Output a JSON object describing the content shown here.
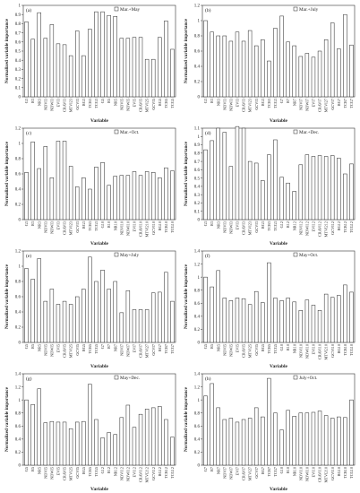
{
  "figure": {
    "ylabel": "Normalized variable importance",
    "xlabel": "Variable"
  },
  "chart_data": [
    {
      "type": "bar",
      "panel_label": "(a)",
      "legend": "Mar.+May",
      "categories": [
        "G3",
        "R3",
        "NR3",
        "NDVI3",
        "NDWI3",
        "EVI3",
        "CRAVI3",
        "MTVI23",
        "GCVI3",
        "RG3",
        "TCB3",
        "TCG3",
        "G5",
        "R5",
        "NR5",
        "NDVI5",
        "NDWI5",
        "EVI5",
        "CRAVI5",
        "MTVI25",
        "GCVI5",
        "RG5",
        "TCB5",
        "TCG5"
      ],
      "values": [
        0.82,
        0.63,
        0.92,
        0.64,
        0.79,
        0.58,
        0.57,
        0.45,
        0.72,
        0.45,
        0.74,
        0.93,
        0.93,
        0.89,
        0.88,
        0.64,
        0.64,
        0.65,
        0.65,
        0.41,
        0.41,
        0.65,
        0.83,
        0.52
      ],
      "yticks": [
        0,
        0.1,
        0.2,
        0.3,
        0.4,
        0.5,
        0.6,
        0.7,
        0.8,
        0.9,
        1
      ],
      "ylim": [
        0,
        1.0
      ]
    },
    {
      "type": "bar",
      "panel_label": "(b)",
      "legend": "Mar.+July",
      "categories": [
        "G3",
        "R3",
        "NR3",
        "NDVI3",
        "NDWI3",
        "EVI3",
        "CRAVI3",
        "MTVI23",
        "GCVI3",
        "RG3",
        "TCB3",
        "TCG3",
        "G7",
        "R7",
        "NR7",
        "NDVI7",
        "NDWI7",
        "EVI7",
        "CRAVI7",
        "MTVI27",
        "GCVI7",
        "RG7",
        "TCB7",
        "TCG7"
      ],
      "values": [
        1.0,
        0.85,
        0.8,
        0.8,
        0.73,
        0.85,
        0.73,
        0.87,
        0.67,
        0.75,
        0.47,
        0.9,
        1.06,
        0.72,
        0.67,
        0.53,
        0.57,
        0.52,
        0.6,
        0.75,
        0.97,
        0.63,
        1.08,
        0.68
      ],
      "yticks": [
        0,
        0.2,
        0.4,
        0.6,
        0.8,
        1,
        1.2
      ],
      "ylim": [
        0,
        1.2
      ]
    },
    {
      "type": "bar",
      "panel_label": "(c)",
      "legend": "Mar.+Oct.",
      "categories": [
        "G3",
        "R3",
        "NR3",
        "NDVI3",
        "NDWI3",
        "EVI3",
        "CRAVI3",
        "MTVI23",
        "GCVI3",
        "RG3",
        "TCB3",
        "TCG3",
        "G10",
        "R10",
        "NR10",
        "NDVI10",
        "NDWI10",
        "EVI10",
        "CRAVI10",
        "MTVI210",
        "GCVI10",
        "RG10",
        "TCB10",
        "TCG10"
      ],
      "values": [
        0.62,
        1.02,
        0.67,
        0.96,
        0.55,
        1.03,
        1.03,
        0.7,
        0.43,
        0.55,
        0.4,
        0.69,
        0.75,
        0.45,
        0.57,
        0.58,
        0.58,
        0.63,
        0.58,
        0.63,
        0.62,
        0.55,
        0.68,
        0.64
      ],
      "yticks": [
        0,
        0.2,
        0.4,
        0.6,
        0.8,
        1,
        1.2
      ],
      "ylim": [
        0,
        1.2
      ]
    },
    {
      "type": "bar",
      "panel_label": "(d)",
      "legend": "Mar.+Dec.",
      "categories": [
        "G3",
        "R3",
        "NR3",
        "NDVI3",
        "NDWI3",
        "EVI3",
        "CRAVI3",
        "MTVI23",
        "GCVI3",
        "RG3",
        "TCB3",
        "TCG3",
        "G12",
        "R12",
        "NR12",
        "NDVI12",
        "NDWI12",
        "EVI12",
        "CRAVI12",
        "MTVI212",
        "GCVI12",
        "RG12",
        "TCB12",
        "TCG12"
      ],
      "values": [
        0.84,
        0.95,
        1.1,
        1.05,
        0.64,
        1.12,
        1.1,
        0.7,
        0.68,
        0.47,
        0.78,
        0.96,
        0.51,
        0.44,
        0.34,
        0.66,
        0.78,
        0.76,
        0.77,
        0.76,
        0.77,
        0.74,
        0.55,
        0.67
      ],
      "yticks": [
        0,
        0.1,
        0.2,
        0.3,
        0.4,
        0.5,
        0.6,
        0.7,
        0.8,
        0.9,
        1,
        1.1
      ],
      "ylim": [
        0,
        1.1
      ]
    },
    {
      "type": "bar",
      "panel_label": "(e)",
      "legend": "May+July",
      "categories": [
        "G5",
        "R5",
        "NR5",
        "NDVI5",
        "NDWI5",
        "EVI5",
        "CRAVI5",
        "MTVI25",
        "GCVI5",
        "RG5",
        "TCB5",
        "TCG5",
        "G7",
        "R7",
        "NR7",
        "NDVI7",
        "NDWI7",
        "EVI7",
        "CRAVI7",
        "MTVI27",
        "GCVI7",
        "RG7",
        "TCB7",
        "TCG7"
      ],
      "values": [
        0.97,
        0.83,
        1.1,
        0.54,
        0.7,
        0.5,
        0.54,
        0.5,
        0.6,
        0.7,
        1.12,
        0.8,
        0.95,
        0.7,
        0.8,
        0.39,
        0.68,
        0.43,
        0.43,
        0.43,
        0.65,
        0.66,
        0.92,
        0.54
      ],
      "yticks": [
        0,
        0.2,
        0.4,
        0.6,
        0.8,
        1,
        1.2
      ],
      "ylim": [
        0,
        1.2
      ]
    },
    {
      "type": "bar",
      "panel_label": "(f)",
      "legend": "May+Oct.",
      "categories": [
        "G5",
        "R5",
        "NR5",
        "NDVI5",
        "NDWI5",
        "EVI5",
        "CRAVI5",
        "MTVI25",
        "GCVI5",
        "RG5",
        "TCB5",
        "TCG5",
        "G10",
        "R10",
        "NR10",
        "NDVI10",
        "NDWI10",
        "EVI10",
        "CRAVI10",
        "MTVI210",
        "GCVI10",
        "RG10",
        "TCB10",
        "TCG10"
      ],
      "values": [
        1.0,
        0.85,
        1.1,
        0.68,
        0.64,
        0.68,
        0.67,
        0.58,
        0.78,
        0.61,
        1.22,
        0.68,
        0.64,
        0.68,
        0.62,
        0.49,
        0.65,
        0.57,
        0.49,
        0.74,
        0.69,
        0.72,
        0.88,
        0.77
      ],
      "yticks": [
        0,
        0.2,
        0.4,
        0.6,
        0.8,
        1,
        1.2,
        1.4
      ],
      "ylim": [
        0,
        1.4
      ]
    },
    {
      "type": "bar",
      "panel_label": "(g)",
      "legend": "May+Dec.",
      "categories": [
        "G5",
        "R5",
        "NR5",
        "NDVI5",
        "NDWI5",
        "EVI5",
        "CRAVI5",
        "MTVI25",
        "GCVI5",
        "RG5",
        "TCB5",
        "TCG5",
        "G12",
        "R12",
        "NR12",
        "NDVI12",
        "NDWI12",
        "EVI12",
        "CRAVI12",
        "MTVI212",
        "GCVI12",
        "RG12",
        "TCB12",
        "TCG12"
      ],
      "values": [
        1.0,
        0.93,
        1.17,
        0.65,
        0.67,
        0.66,
        0.66,
        0.56,
        0.66,
        0.67,
        1.24,
        0.7,
        0.42,
        0.5,
        0.47,
        0.73,
        0.92,
        0.58,
        0.78,
        0.86,
        0.88,
        0.9,
        0.7,
        0.43
      ],
      "yticks": [
        0,
        0.2,
        0.4,
        0.6,
        0.8,
        1,
        1.2,
        1.4
      ],
      "ylim": [
        0,
        1.4
      ]
    },
    {
      "type": "bar",
      "panel_label": "(h)",
      "legend": "July+Oct.",
      "categories": [
        "G7",
        "R7",
        "NR7",
        "NDVI7",
        "NDWI7",
        "EVI7",
        "CRAVI7",
        "MTVI27",
        "GCVI7",
        "RG7",
        "TCB7",
        "TCG7",
        "G10",
        "R10",
        "NR10",
        "NDVI10",
        "NDWI10",
        "EVI10",
        "CRAVI10",
        "MTVI210",
        "GCVI10",
        "RG10",
        "TCB10",
        "TCG10"
      ],
      "values": [
        1.06,
        1.25,
        0.88,
        0.7,
        0.72,
        0.66,
        0.7,
        0.72,
        0.88,
        0.74,
        1.33,
        0.8,
        0.54,
        0.84,
        0.75,
        0.8,
        0.8,
        0.81,
        0.83,
        0.76,
        0.72,
        0.74,
        0.73,
        1.0
      ],
      "yticks": [
        0,
        0.2,
        0.4,
        0.6,
        0.8,
        1,
        1.2,
        1.4
      ],
      "ylim": [
        0,
        1.4
      ]
    }
  ]
}
